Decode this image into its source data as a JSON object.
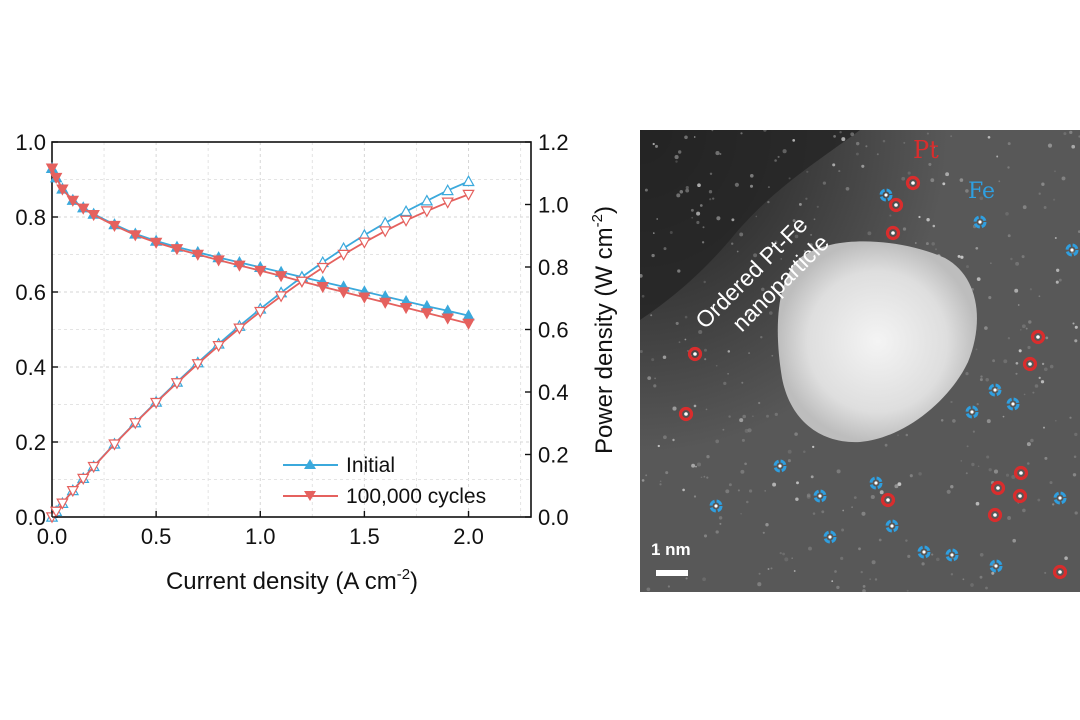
{
  "chart_data": {
    "type": "line",
    "xlabel": "Current density (A cm",
    "xlabel_sup": "-2",
    "xlabel_end": ")",
    "ylabel_left": "",
    "ylabel_right": "Power density (W cm",
    "ylabel_right_sup": "-2",
    "ylabel_right_end": ")",
    "xlim": [
      0,
      2.3
    ],
    "ylim_left": [
      0,
      1.0
    ],
    "ylim_right": [
      0,
      1.2
    ],
    "x_ticks": [
      "0.0",
      "0.5",
      "1.0",
      "1.5",
      "2.0"
    ],
    "y_left_ticks": [
      "0.0",
      "0.2",
      "0.4",
      "0.6",
      "0.8",
      "1.0"
    ],
    "y_right_ticks": [
      "0.0",
      "0.2",
      "0.4",
      "0.6",
      "0.8",
      "1.0",
      "1.2"
    ],
    "grid": true,
    "legend_position": "bottom-right",
    "x": [
      0.0,
      0.02,
      0.05,
      0.1,
      0.15,
      0.2,
      0.3,
      0.4,
      0.5,
      0.6,
      0.7,
      0.8,
      0.9,
      1.0,
      1.1,
      1.2,
      1.3,
      1.4,
      1.5,
      1.6,
      1.7,
      1.8,
      1.9,
      2.0
    ],
    "series": [
      {
        "name": "Initial",
        "color": "#3ba9dc",
        "marker": "triangle-up",
        "voltage": [
          0.93,
          0.905,
          0.875,
          0.845,
          0.825,
          0.808,
          0.78,
          0.755,
          0.736,
          0.72,
          0.706,
          0.692,
          0.679,
          0.666,
          0.653,
          0.64,
          0.627,
          0.614,
          0.601,
          0.588,
          0.575,
          0.562,
          0.55,
          0.537
        ],
        "power": [
          0.0,
          0.018,
          0.044,
          0.085,
          0.124,
          0.162,
          0.234,
          0.302,
          0.368,
          0.432,
          0.494,
          0.554,
          0.611,
          0.666,
          0.718,
          0.768,
          0.815,
          0.86,
          0.902,
          0.941,
          0.978,
          1.012,
          1.045,
          1.074
        ]
      },
      {
        "name": "100,000 cycles",
        "color": "#e5615e",
        "marker": "triangle-down",
        "voltage": [
          0.93,
          0.905,
          0.874,
          0.844,
          0.823,
          0.806,
          0.777,
          0.752,
          0.732,
          0.715,
          0.7,
          0.685,
          0.671,
          0.657,
          0.643,
          0.628,
          0.614,
          0.6,
          0.586,
          0.572,
          0.558,
          0.544,
          0.53,
          0.516
        ],
        "power": [
          0.0,
          0.018,
          0.044,
          0.084,
          0.123,
          0.161,
          0.233,
          0.301,
          0.366,
          0.429,
          0.49,
          0.548,
          0.604,
          0.657,
          0.707,
          0.754,
          0.798,
          0.84,
          0.879,
          0.915,
          0.949,
          0.979,
          1.007,
          1.032
        ]
      }
    ]
  },
  "micrograph": {
    "label_pt": "Pt",
    "label_fe": "Fe",
    "annotation_line1": "Ordered Pt-Fe",
    "annotation_line2": "nanoparticle",
    "scale_bar": "1 nm",
    "color_pt": "#d92d2d",
    "color_fe": "#2f9fe0"
  }
}
